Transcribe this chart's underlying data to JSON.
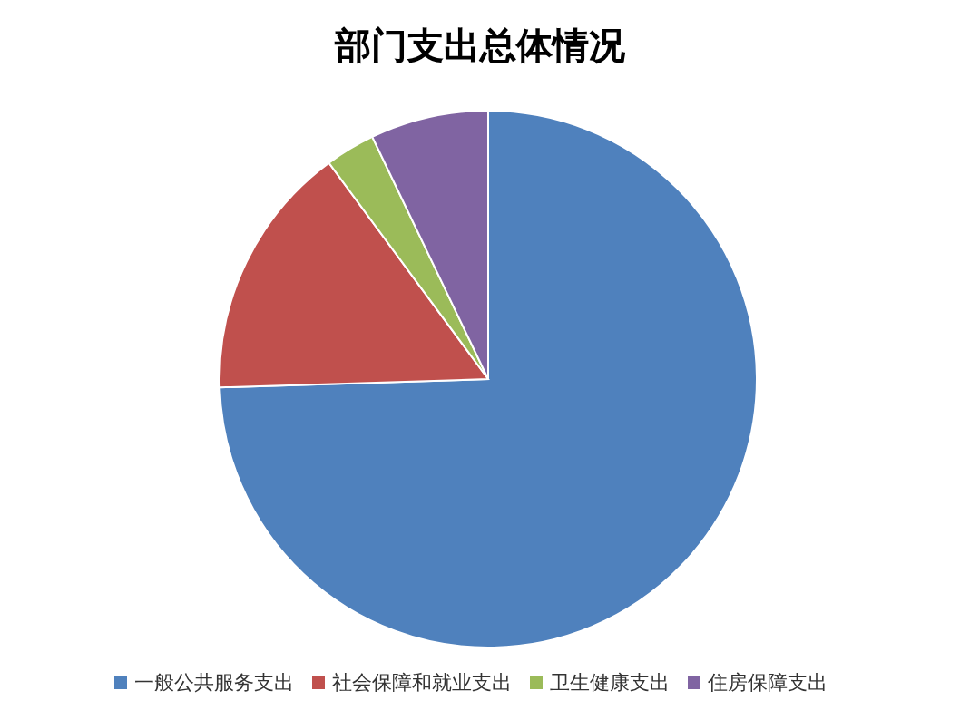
{
  "chart_data": {
    "type": "pie",
    "title": "部门支出总体情况",
    "categories": [
      "一般公共服务支出",
      "社会保障和就业支出",
      "卫生健康支出",
      "住房保障支出"
    ],
    "values": [
      74.5,
      15.4,
      3.0,
      7.1
    ],
    "colors": [
      "#4f81bd",
      "#c0504d",
      "#9bbb59",
      "#8064a2"
    ],
    "legend": "bottom"
  }
}
